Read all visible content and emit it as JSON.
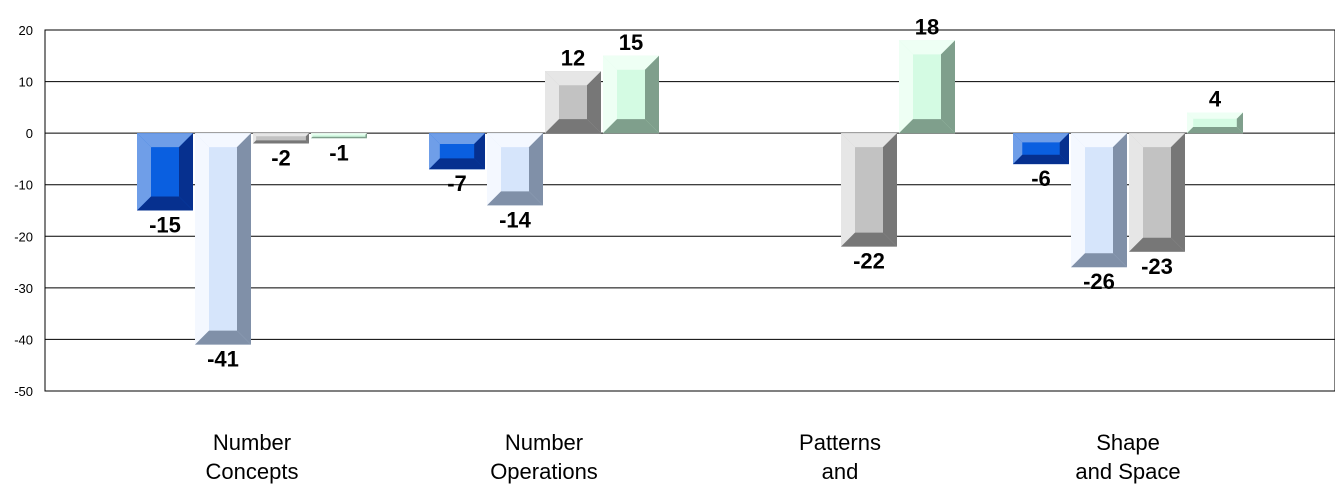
{
  "chart_data": {
    "type": "bar",
    "style": "3d-beveled",
    "categories": [
      [
        "Number",
        "Concepts"
      ],
      [
        "Number",
        "Operations"
      ],
      [
        "Patterns",
        "and"
      ],
      [
        "Shape",
        "and Space"
      ]
    ],
    "series": [
      {
        "values": [
          -15,
          -7,
          null,
          -6
        ],
        "colors": {
          "light": "#6f9ee8",
          "face": "#0a5fe0",
          "dark": "#06308f"
        }
      },
      {
        "values": [
          -41,
          -14,
          null,
          -26
        ],
        "colors": {
          "light": "#f4f8ff",
          "face": "#d6e5fb",
          "dark": "#8090a8"
        }
      },
      {
        "values": [
          -2,
          12,
          -22,
          -23
        ],
        "colors": {
          "light": "#e6e6e6",
          "face": "#c2c2c2",
          "dark": "#777777"
        }
      },
      {
        "values": [
          -1,
          15,
          18,
          4
        ],
        "colors": {
          "light": "#eefff4",
          "face": "#d4fbe3",
          "dark": "#7f9f8c"
        }
      }
    ],
    "y_ticks": [
      20,
      10,
      0,
      -10,
      -20,
      -30,
      -40,
      -50
    ],
    "ylim": [
      -50,
      20
    ],
    "grid": true,
    "legend": "none"
  }
}
